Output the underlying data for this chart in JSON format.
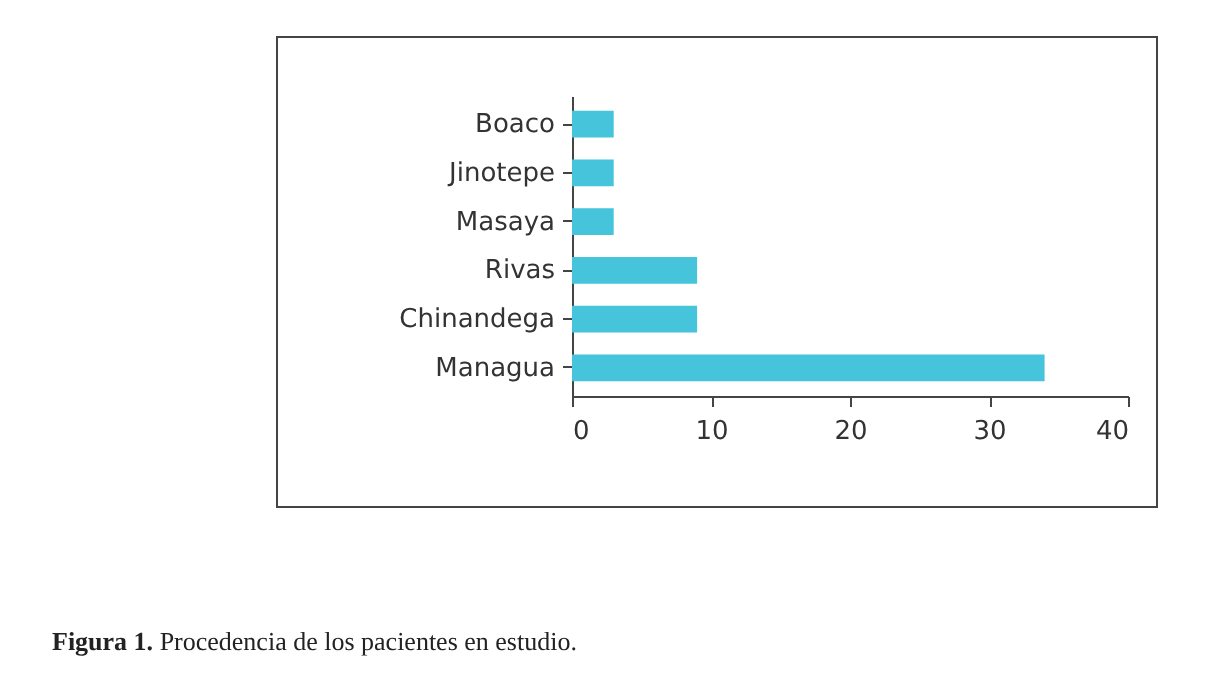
{
  "chart_data": {
    "type": "bar",
    "orientation": "horizontal",
    "categories": [
      "Boaco",
      "Jinotepe",
      "Masaya",
      "Rivas",
      "Chinandega",
      "Managua"
    ],
    "values": [
      3,
      3,
      3,
      9,
      9,
      34
    ],
    "color": "#45c4dc",
    "xlim": [
      0,
      40
    ],
    "xticks": [
      0,
      10,
      20,
      30,
      40
    ],
    "grid": false,
    "annotations": [
      "Figura 1. Procedencia de los pacientes en estudio."
    ]
  }
}
